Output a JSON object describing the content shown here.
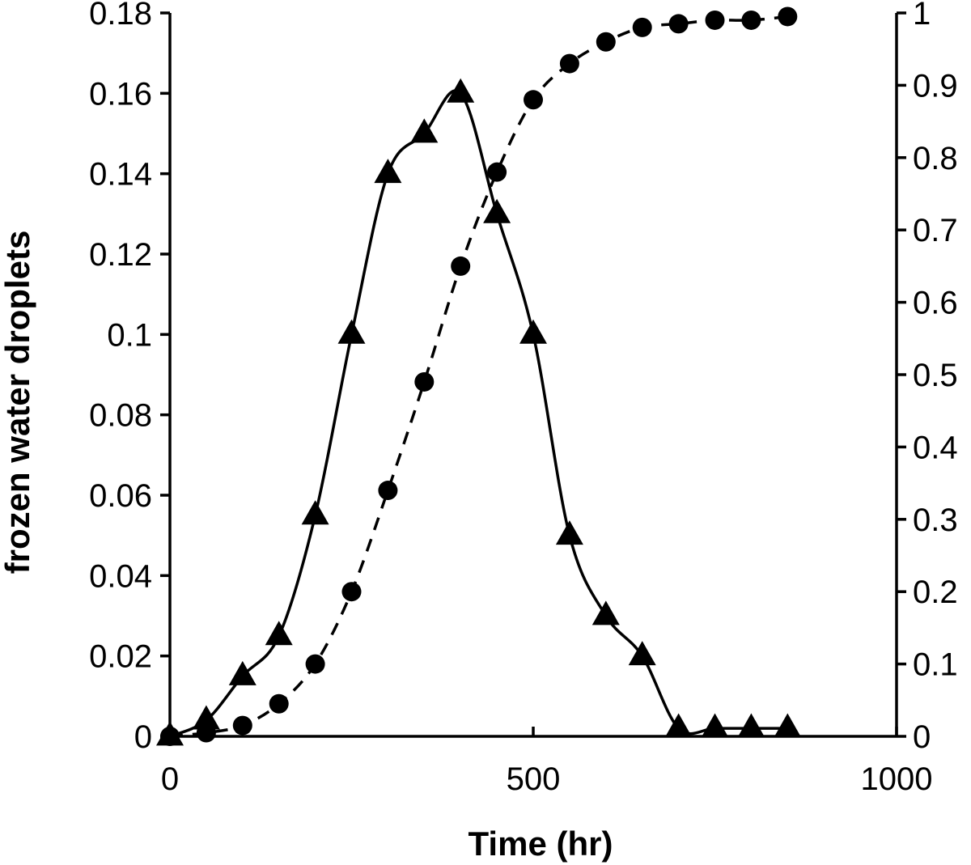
{
  "chart_data": {
    "type": "line",
    "xlabel": "Time (hr)",
    "ylabel_left": "frozen water droplets",
    "ylabel_right": "",
    "xlim": [
      0,
      1000
    ],
    "ylim_left": [
      0,
      0.18
    ],
    "ylim_right": [
      0,
      1
    ],
    "x_ticks": [
      0,
      500,
      1000
    ],
    "x_tick_labels": [
      "0",
      "500",
      "1000"
    ],
    "y_left_ticks": [
      0,
      0.02,
      0.04,
      0.06,
      0.08,
      0.1,
      0.12,
      0.14,
      0.16,
      0.18
    ],
    "y_left_tick_labels": [
      "0",
      "0.02",
      "0.04",
      "0.06",
      "0.08",
      "0.1",
      "0.12",
      "0.14",
      "0.16",
      "0.18"
    ],
    "y_right_ticks": [
      0,
      0.1,
      0.2,
      0.3,
      0.4,
      0.5,
      0.6,
      0.7,
      0.8,
      0.9,
      1
    ],
    "y_right_tick_labels": [
      "0",
      "0.1",
      "0.2",
      "0.3",
      "0.4",
      "0.5",
      "0.6",
      "0.7",
      "0.8",
      "0.9",
      "1"
    ],
    "grid": false,
    "legend": "none",
    "series": [
      {
        "marker": "triangle",
        "line_style": "solid",
        "axis": "left",
        "x": [
          0,
          50,
          100,
          150,
          200,
          250,
          300,
          350,
          400,
          450,
          500,
          550,
          600,
          650,
          700,
          750,
          800,
          850
        ],
        "y": [
          0,
          0.004,
          0.015,
          0.025,
          0.055,
          0.1,
          0.14,
          0.15,
          0.16,
          0.13,
          0.1,
          0.05,
          0.03,
          0.02,
          0.002,
          0.002,
          0.002,
          0.002
        ]
      },
      {
        "marker": "circle",
        "line_style": "dashed",
        "axis": "right",
        "x": [
          0,
          50,
          100,
          150,
          200,
          250,
          300,
          350,
          400,
          450,
          500,
          550,
          600,
          650,
          700,
          750,
          800,
          850
        ],
        "y": [
          0,
          0.005,
          0.015,
          0.045,
          0.1,
          0.2,
          0.34,
          0.49,
          0.65,
          0.78,
          0.88,
          0.93,
          0.96,
          0.98,
          0.985,
          0.99,
          0.99,
          0.995
        ]
      }
    ]
  }
}
